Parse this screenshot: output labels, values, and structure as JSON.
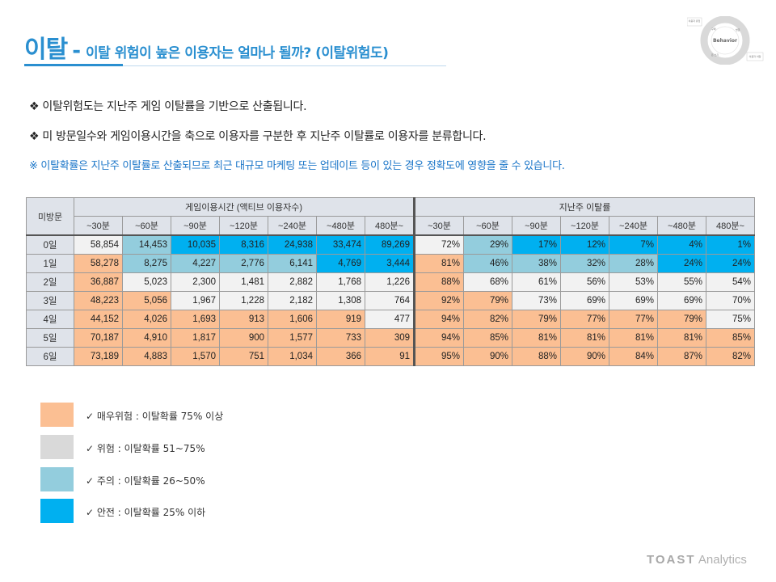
{
  "header": {
    "title_main": "이탈",
    "title_dash": "-",
    "title_sub": "이탈 위험이 높은 이용자는 얼마나 될까?  (이탈위험도)"
  },
  "badge": {
    "center": "Behavior",
    "labels": [
      "이용자 유입",
      "구매",
      "방문",
      "돈 쓰기",
      "이용자 이탈"
    ]
  },
  "bullets": {
    "b1": "❖ 이탈위험도는 지난주 게임 이탈률을 기반으로 산출됩니다.",
    "b2": "❖ 미 방문일수와 게임이용시간을 축으로 이용자를 구분한 후 지난주 이탈률로 이용자를 분류합니다.",
    "note": "※ 이탈확률은 지난주 이탈률로 산출되므로 최근 대규모 마케팅 또는 업데이트 등이 있는 경우 정확도에 영향을 줄 수 있습니다."
  },
  "table": {
    "row_header": "미방문",
    "group_usage": "게임이용시간 (액티브 이용자수)",
    "group_churn": "지난주 이탈률",
    "columns": [
      "~30분",
      "~60분",
      "~90분",
      "~120분",
      "~240분",
      "~480분",
      "480분~"
    ],
    "rows": [
      {
        "label": "0일",
        "counts": [
          "58,854",
          "14,453",
          "10,035",
          "8,316",
          "24,938",
          "33,474",
          "89,269"
        ],
        "rates": [
          "72%",
          "29%",
          "17%",
          "12%",
          "7%",
          "4%",
          "1%"
        ],
        "levels": [
          "h",
          "c",
          "s",
          "s",
          "s",
          "s",
          "s"
        ]
      },
      {
        "label": "1일",
        "counts": [
          "58,278",
          "8,275",
          "4,227",
          "2,776",
          "6,141",
          "4,769",
          "3,444"
        ],
        "rates": [
          "81%",
          "46%",
          "38%",
          "32%",
          "28%",
          "24%",
          "24%"
        ],
        "levels": [
          "vh",
          "c",
          "c",
          "c",
          "c",
          "s",
          "s"
        ]
      },
      {
        "label": "2일",
        "counts": [
          "36,887",
          "5,023",
          "2,300",
          "1,481",
          "2,882",
          "1,768",
          "1,226"
        ],
        "rates": [
          "88%",
          "68%",
          "61%",
          "56%",
          "53%",
          "55%",
          "54%"
        ],
        "levels": [
          "vh",
          "h",
          "h",
          "h",
          "h",
          "h",
          "h"
        ]
      },
      {
        "label": "3일",
        "counts": [
          "48,223",
          "5,056",
          "1,967",
          "1,228",
          "2,182",
          "1,308",
          "764"
        ],
        "rates": [
          "92%",
          "79%",
          "73%",
          "69%",
          "69%",
          "69%",
          "70%"
        ],
        "levels": [
          "vh",
          "vh",
          "h",
          "h",
          "h",
          "h",
          "h"
        ]
      },
      {
        "label": "4일",
        "counts": [
          "44,152",
          "4,026",
          "1,693",
          "913",
          "1,606",
          "919",
          "477"
        ],
        "rates": [
          "94%",
          "82%",
          "79%",
          "77%",
          "77%",
          "79%",
          "75%"
        ],
        "levels": [
          "vh",
          "vh",
          "vh",
          "vh",
          "vh",
          "vh",
          "h"
        ]
      },
      {
        "label": "5일",
        "counts": [
          "70,187",
          "4,910",
          "1,817",
          "900",
          "1,577",
          "733",
          "309"
        ],
        "rates": [
          "94%",
          "85%",
          "81%",
          "81%",
          "81%",
          "81%",
          "85%"
        ],
        "levels": [
          "vh",
          "vh",
          "vh",
          "vh",
          "vh",
          "vh",
          "vh"
        ]
      },
      {
        "label": "6일",
        "counts": [
          "73,189",
          "4,883",
          "1,570",
          "751",
          "1,034",
          "366",
          "91"
        ],
        "rates": [
          "95%",
          "90%",
          "88%",
          "90%",
          "84%",
          "87%",
          "82%"
        ],
        "levels": [
          "vh",
          "vh",
          "vh",
          "vh",
          "vh",
          "vh",
          "vh"
        ]
      }
    ]
  },
  "legend": [
    {
      "text": "✓  매우위험 : 이탈확률 75% 이상",
      "color": "#fbbf93"
    },
    {
      "text": "✓  위험 : 이탈확률 51~75%",
      "color": "#d9d9d9"
    },
    {
      "text": "✓  주의 : 이탈확률 26~50%",
      "color": "#93cddd"
    },
    {
      "text": "✓  안전 : 이탈확률 25% 이하",
      "color": "#00b0f0"
    }
  ],
  "footer": {
    "brand": "TOAST",
    "product": "Analytics"
  }
}
